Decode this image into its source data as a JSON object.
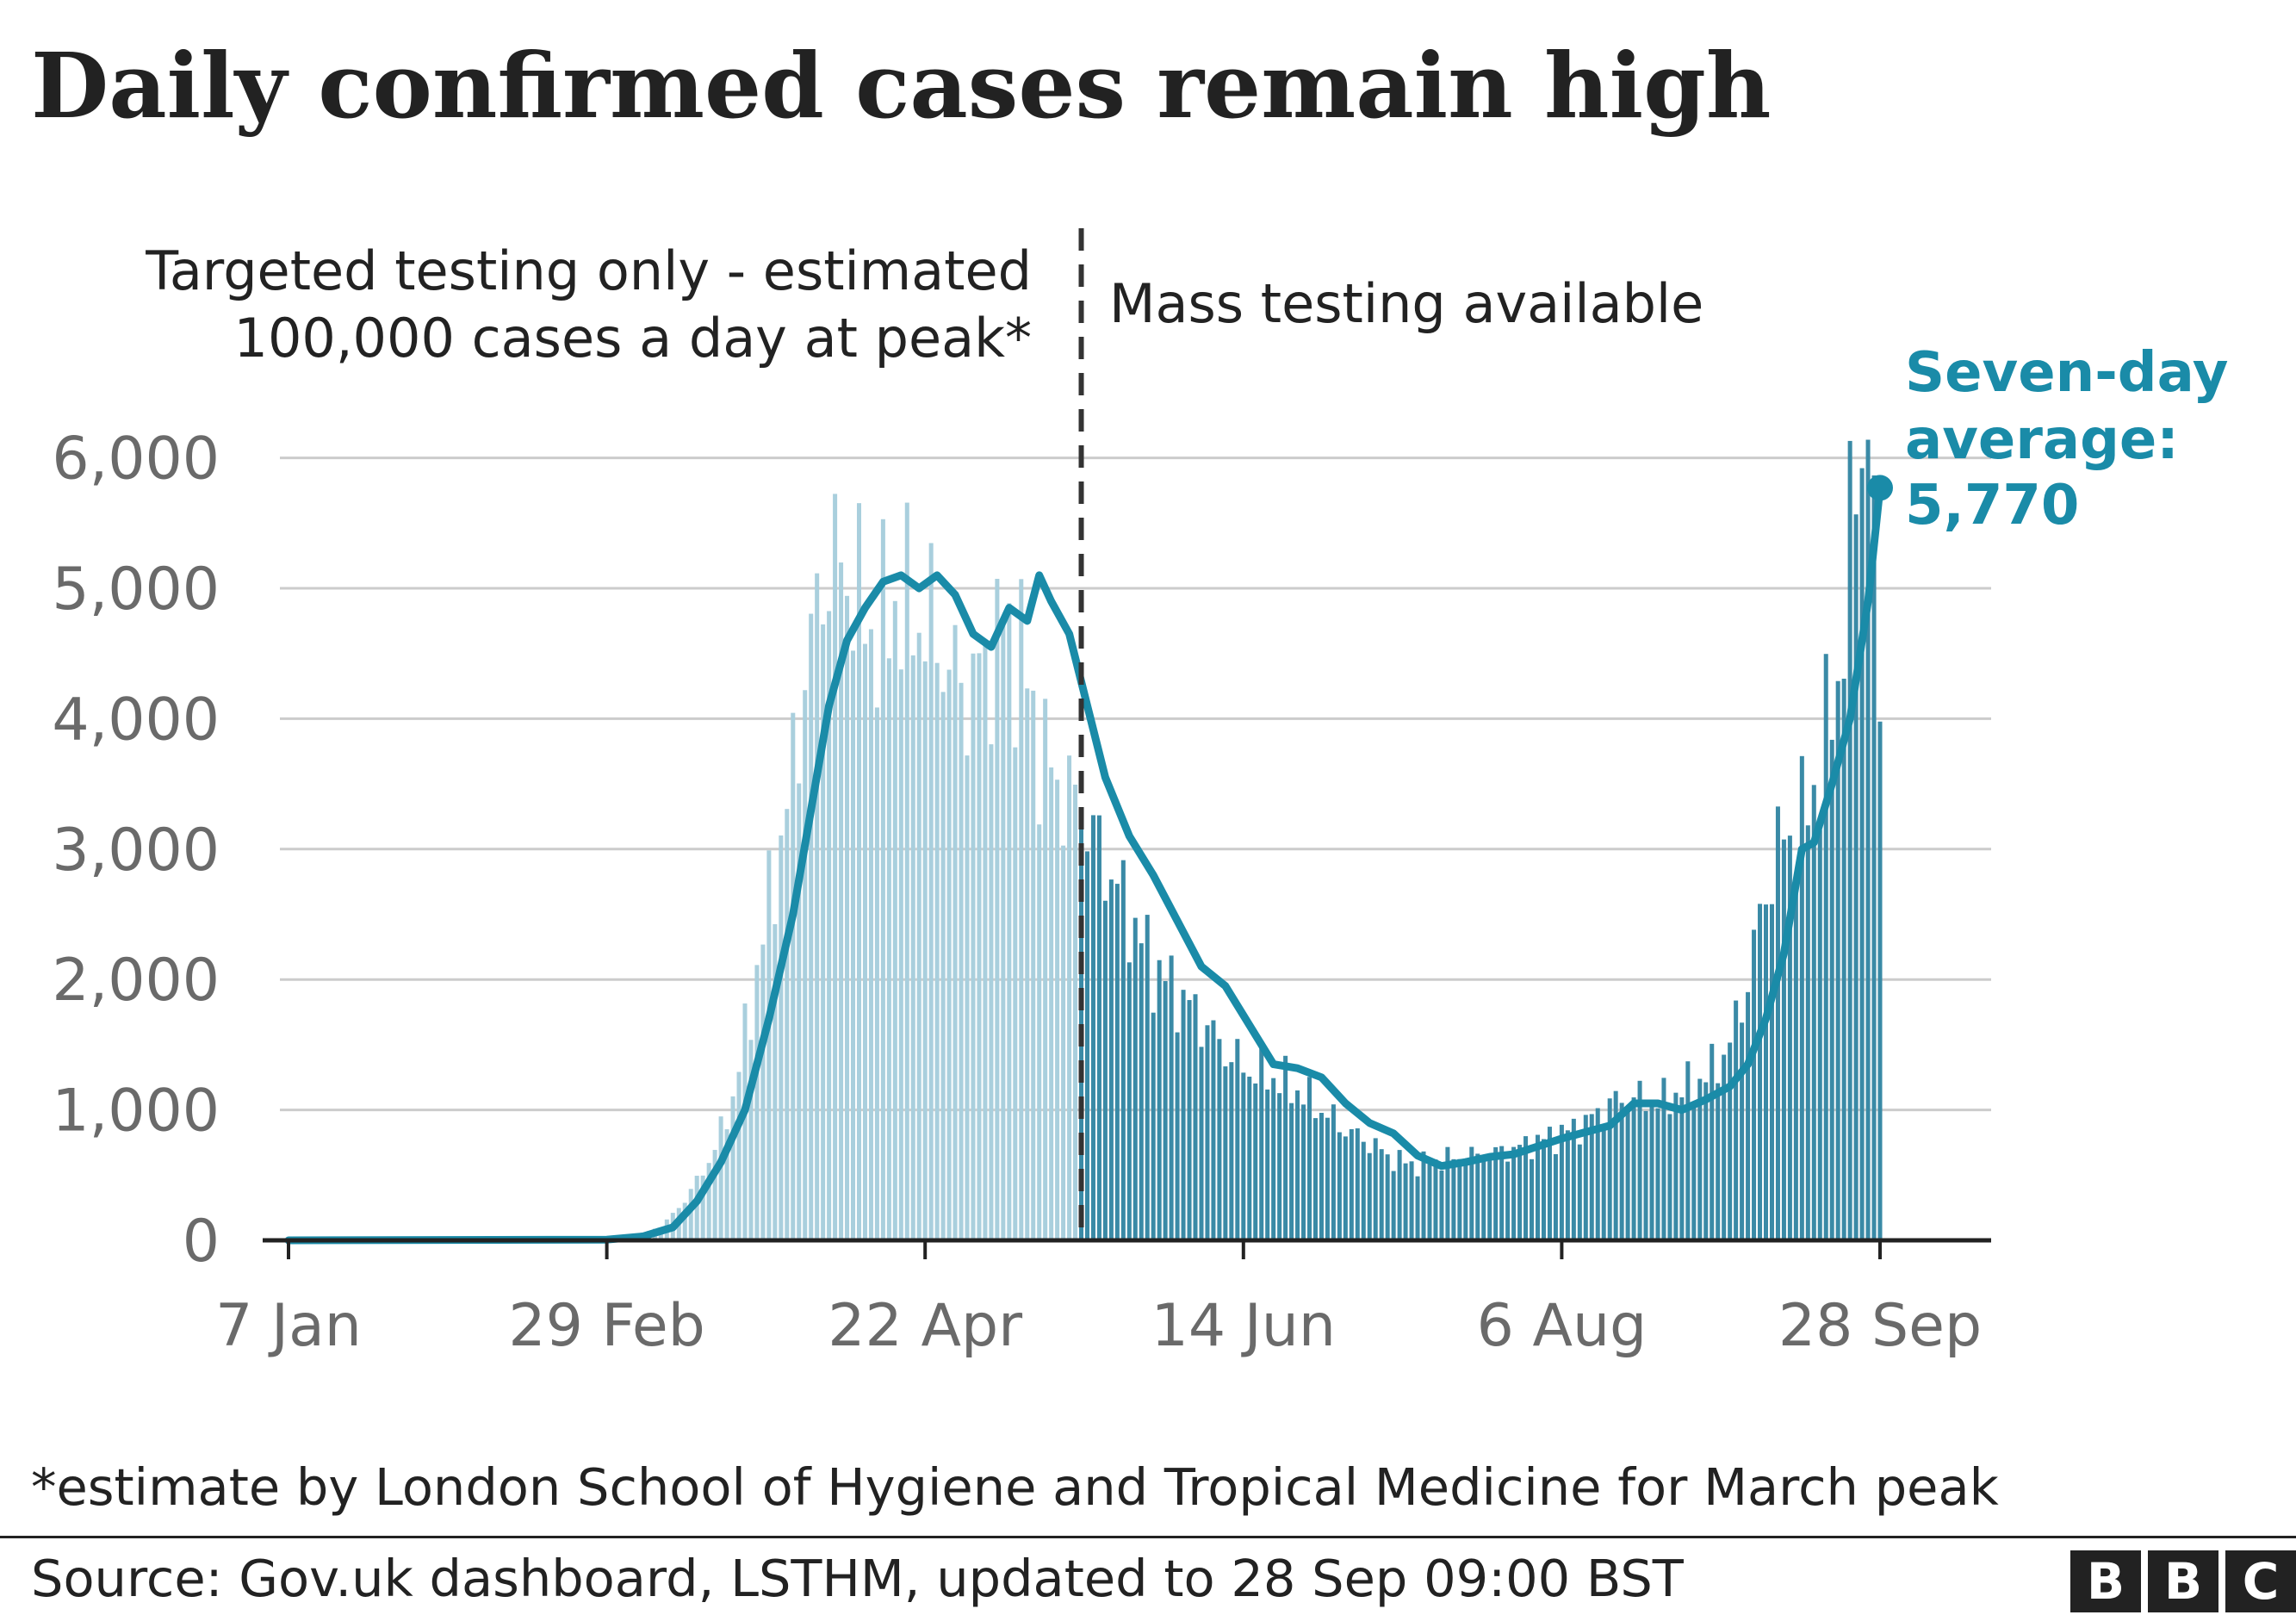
{
  "title": "Daily confirmed cases remain high",
  "footnote": "*estimate by London School of Hygiene and Tropical Medicine for March peak",
  "source": "Source: Gov.uk dashboard, LSTHM, updated to 28 Sep 09:00 BST",
  "logo": [
    "B",
    "B",
    "C"
  ],
  "colors": {
    "bars_before": "#a9cfdd",
    "bars_after": "#3a8aa6",
    "average_line": "#1a8ba8",
    "divider": "#333333",
    "grid": "#cccccc",
    "axis": "#222222"
  },
  "chart_data": {
    "type": "bar",
    "ylim": [
      0,
      6800
    ],
    "yticks": [
      0,
      1000,
      2000,
      3000,
      4000,
      5000,
      6000
    ],
    "ytick_labels": [
      "0",
      "1,000",
      "2,000",
      "3,000",
      "4,000",
      "5,000",
      "6,000"
    ],
    "xticks": [
      "2020-01-07",
      "2020-02-29",
      "2020-04-22",
      "2020-06-14",
      "2020-08-06",
      "2020-09-28"
    ],
    "xtick_labels": [
      "7 Jan",
      "29 Feb",
      "22 Apr",
      "14 Jun",
      "6 Aug",
      "28 Sep"
    ],
    "x_start": "2020-01-07",
    "x_end": "2020-09-28",
    "divider_date": "2020-05-18",
    "annotations": {
      "before_line1": "Targeted testing only - estimated",
      "before_line2": "100,000 cases a day at peak*",
      "after": "Mass testing available"
    },
    "average_label": [
      "Seven-day",
      "average:",
      "5,770"
    ],
    "average_final": 5770,
    "daily_keypoints": [
      [
        "2020-01-07",
        0
      ],
      [
        "2020-02-24",
        5
      ],
      [
        "2020-03-01",
        10
      ],
      [
        "2020-03-05",
        40
      ],
      [
        "2020-03-09",
        100
      ],
      [
        "2020-03-12",
        250
      ],
      [
        "2020-03-15",
        450
      ],
      [
        "2020-03-18",
        700
      ],
      [
        "2020-03-21",
        1100
      ],
      [
        "2020-03-24",
        1800
      ],
      [
        "2020-03-27",
        2600
      ],
      [
        "2020-03-30",
        3300
      ],
      [
        "2020-04-02",
        4300
      ],
      [
        "2020-04-05",
        5100
      ],
      [
        "2020-04-08",
        5200
      ],
      [
        "2020-04-11",
        4900
      ],
      [
        "2020-04-14",
        4600
      ],
      [
        "2020-04-17",
        4900
      ],
      [
        "2020-04-20",
        4800
      ],
      [
        "2020-04-23",
        4700
      ],
      [
        "2020-04-26",
        4400
      ],
      [
        "2020-04-29",
        4200
      ],
      [
        "2020-05-02",
        4400
      ],
      [
        "2020-05-05",
        4700
      ],
      [
        "2020-05-08",
        4500
      ],
      [
        "2020-05-11",
        3800
      ],
      [
        "2020-05-14",
        3500
      ],
      [
        "2020-05-18",
        3300
      ],
      [
        "2020-05-22",
        2900
      ],
      [
        "2020-05-26",
        2500
      ],
      [
        "2020-05-30",
        2100
      ],
      [
        "2020-06-03",
        1900
      ],
      [
        "2020-06-07",
        1700
      ],
      [
        "2020-06-11",
        1450
      ],
      [
        "2020-06-15",
        1300
      ],
      [
        "2020-06-19",
        1250
      ],
      [
        "2020-06-23",
        1150
      ],
      [
        "2020-06-27",
        1000
      ],
      [
        "2020-07-01",
        850
      ],
      [
        "2020-07-05",
        750
      ],
      [
        "2020-07-09",
        620
      ],
      [
        "2020-07-13",
        580
      ],
      [
        "2020-07-17",
        620
      ],
      [
        "2020-07-21",
        640
      ],
      [
        "2020-07-25",
        660
      ],
      [
        "2020-07-29",
        700
      ],
      [
        "2020-08-02",
        760
      ],
      [
        "2020-08-06",
        820
      ],
      [
        "2020-08-10",
        900
      ],
      [
        "2020-08-14",
        1050
      ],
      [
        "2020-08-18",
        1100
      ],
      [
        "2020-08-22",
        1050
      ],
      [
        "2020-08-26",
        1150
      ],
      [
        "2020-08-30",
        1250
      ],
      [
        "2020-09-03",
        1500
      ],
      [
        "2020-09-06",
        2000
      ],
      [
        "2020-09-09",
        2700
      ],
      [
        "2020-09-12",
        3100
      ],
      [
        "2020-09-15",
        3200
      ],
      [
        "2020-09-18",
        3600
      ],
      [
        "2020-09-21",
        4300
      ],
      [
        "2020-09-24",
        5800
      ],
      [
        "2020-09-26",
        6500
      ],
      [
        "2020-09-28",
        4000
      ]
    ],
    "average_keypoints": [
      [
        "2020-01-07",
        0
      ],
      [
        "2020-02-29",
        5
      ],
      [
        "2020-03-06",
        30
      ],
      [
        "2020-03-11",
        100
      ],
      [
        "2020-03-15",
        300
      ],
      [
        "2020-03-19",
        600
      ],
      [
        "2020-03-23",
        1000
      ],
      [
        "2020-03-27",
        1700
      ],
      [
        "2020-03-31",
        2500
      ],
      [
        "2020-04-03",
        3300
      ],
      [
        "2020-04-06",
        4100
      ],
      [
        "2020-04-09",
        4600
      ],
      [
        "2020-04-12",
        4850
      ],
      [
        "2020-04-15",
        5050
      ],
      [
        "2020-04-18",
        5100
      ],
      [
        "2020-04-21",
        5000
      ],
      [
        "2020-04-24",
        5100
      ],
      [
        "2020-04-27",
        4950
      ],
      [
        "2020-04-30",
        4650
      ],
      [
        "2020-05-03",
        4550
      ],
      [
        "2020-05-06",
        4850
      ],
      [
        "2020-05-09",
        4750
      ],
      [
        "2020-05-11",
        5100
      ],
      [
        "2020-05-13",
        4900
      ],
      [
        "2020-05-16",
        4650
      ],
      [
        "2020-05-19",
        4100
      ],
      [
        "2020-05-22",
        3550
      ],
      [
        "2020-05-26",
        3100
      ],
      [
        "2020-05-30",
        2800
      ],
      [
        "2020-06-03",
        2450
      ],
      [
        "2020-06-07",
        2100
      ],
      [
        "2020-06-11",
        1950
      ],
      [
        "2020-06-15",
        1650
      ],
      [
        "2020-06-19",
        1350
      ],
      [
        "2020-06-23",
        1320
      ],
      [
        "2020-06-27",
        1250
      ],
      [
        "2020-07-01",
        1050
      ],
      [
        "2020-07-05",
        900
      ],
      [
        "2020-07-09",
        820
      ],
      [
        "2020-07-13",
        650
      ],
      [
        "2020-07-17",
        570
      ],
      [
        "2020-07-21",
        600
      ],
      [
        "2020-07-25",
        640
      ],
      [
        "2020-07-29",
        660
      ],
      [
        "2020-08-02",
        720
      ],
      [
        "2020-08-06",
        780
      ],
      [
        "2020-08-10",
        830
      ],
      [
        "2020-08-14",
        880
      ],
      [
        "2020-08-18",
        1050
      ],
      [
        "2020-08-22",
        1050
      ],
      [
        "2020-08-26",
        1000
      ],
      [
        "2020-08-30",
        1080
      ],
      [
        "2020-09-03",
        1180
      ],
      [
        "2020-09-06",
        1350
      ],
      [
        "2020-09-09",
        1700
      ],
      [
        "2020-09-12",
        2200
      ],
      [
        "2020-09-15",
        3000
      ],
      [
        "2020-09-17",
        3050
      ],
      [
        "2020-09-20",
        3500
      ],
      [
        "2020-09-23",
        4000
      ],
      [
        "2020-09-26",
        4900
      ],
      [
        "2020-09-28",
        5770
      ]
    ]
  }
}
